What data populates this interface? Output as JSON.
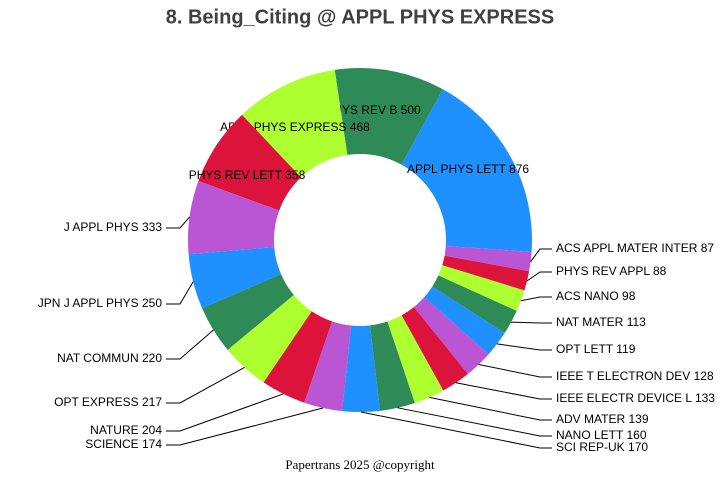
{
  "chart_data": {
    "type": "donut",
    "title": "8. Being_Citing @ APPL PHYS EXPRESS",
    "categories": [
      "APPL PHYS LETT",
      "PHYS REV B",
      "APPL PHYS EXPRESS",
      "PHYS REV LETT",
      "J APPL PHYS",
      "JPN J APPL PHYS",
      "NAT COMMUN",
      "OPT EXPRESS",
      "NATURE",
      "SCIENCE",
      "SCI REP-UK",
      "NANO LETT",
      "ADV MATER",
      "IEEE ELECTR DEVICE L",
      "IEEE T ELECTRON DEV",
      "OPT LETT",
      "NAT MATER",
      "ACS NANO",
      "PHYS REV APPL",
      "ACS APPL MATER INTER"
    ],
    "values": [
      876,
      500,
      468,
      358,
      333,
      250,
      220,
      217,
      204,
      174,
      170,
      160,
      139,
      133,
      128,
      119,
      113,
      98,
      88,
      87
    ],
    "colors": [
      "#1e90ff",
      "#2e8b57",
      "#adff2f",
      "#dc143c",
      "#ba55d3"
    ],
    "footer": "Papertrans 2025 @copyright"
  }
}
